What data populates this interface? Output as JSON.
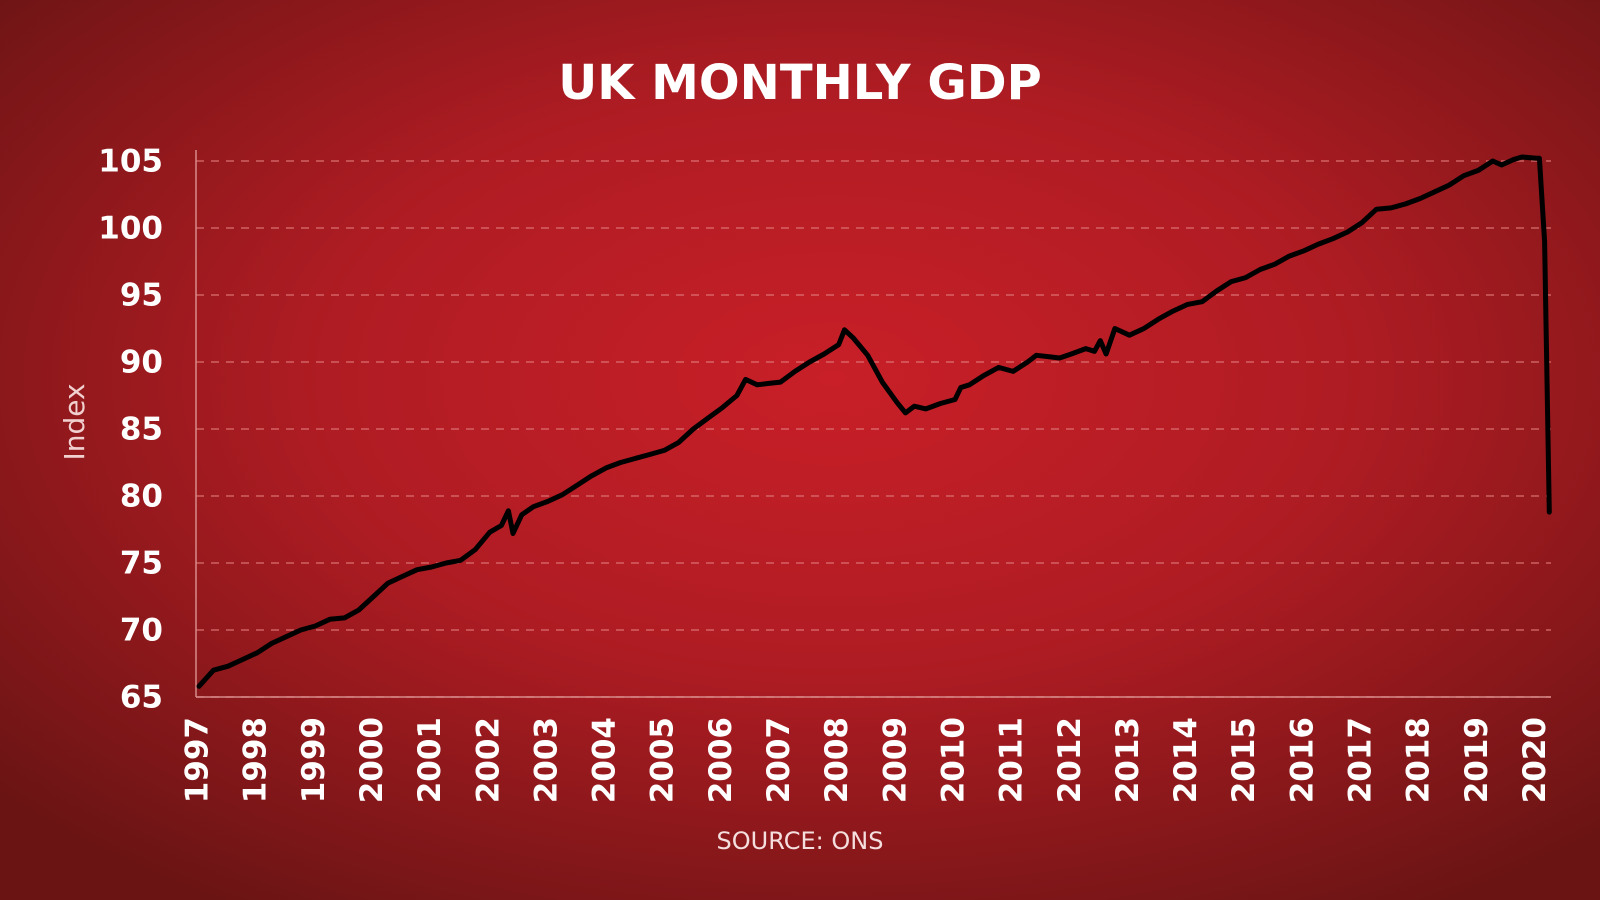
{
  "chart_data": {
    "type": "line",
    "title": "UK MONTHLY GDP",
    "ylabel": "Index",
    "source": "SOURCE: ONS",
    "x": [
      1997.0,
      1997.25,
      1997.5,
      1997.75,
      1998.0,
      1998.25,
      1998.5,
      1998.75,
      1999.0,
      1999.25,
      1999.5,
      1999.75,
      2000.0,
      2000.25,
      2000.5,
      2000.75,
      2001.0,
      2001.25,
      2001.5,
      2001.75,
      2002.0,
      2002.2,
      2002.32,
      2002.4,
      2002.55,
      2002.75,
      2003.0,
      2003.25,
      2003.5,
      2003.75,
      2004.0,
      2004.25,
      2004.5,
      2004.75,
      2005.0,
      2005.25,
      2005.5,
      2005.75,
      2006.0,
      2006.25,
      2006.4,
      2006.6,
      2006.8,
      2007.0,
      2007.25,
      2007.5,
      2007.75,
      2008.0,
      2008.1,
      2008.25,
      2008.5,
      2008.75,
      2009.0,
      2009.15,
      2009.3,
      2009.5,
      2009.75,
      2010.0,
      2010.1,
      2010.25,
      2010.5,
      2010.75,
      2011.0,
      2011.25,
      2011.4,
      2011.6,
      2011.8,
      2012.0,
      2012.25,
      2012.4,
      2012.5,
      2012.6,
      2012.75,
      2013.0,
      2013.25,
      2013.5,
      2013.75,
      2014.0,
      2014.25,
      2014.5,
      2014.75,
      2015.0,
      2015.25,
      2015.5,
      2015.75,
      2016.0,
      2016.25,
      2016.5,
      2016.75,
      2017.0,
      2017.25,
      2017.5,
      2017.75,
      2018.0,
      2018.25,
      2018.5,
      2018.75,
      2019.0,
      2019.25,
      2019.4,
      2019.6,
      2019.75,
      2020.0,
      2020.05,
      2020.14,
      2020.22
    ],
    "series": [
      {
        "name": "UK monthly GDP",
        "color": "#000000",
        "values": [
          65.8,
          67,
          67.3,
          67.8,
          68.3,
          69,
          69.5,
          70,
          70.3,
          70.8,
          70.9,
          71.5,
          72.5,
          73.5,
          74,
          74.5,
          74.7,
          75,
          75.2,
          76,
          77.3,
          77.8,
          78.9,
          77.2,
          78.6,
          79.2,
          79.6,
          80.1,
          80.8,
          81.5,
          82.1,
          82.5,
          82.8,
          83.1,
          83.4,
          84,
          85,
          85.8,
          86.6,
          87.5,
          88.7,
          88.3,
          88.4,
          88.5,
          89.3,
          90,
          90.6,
          91.3,
          92.4,
          91.8,
          90.5,
          88.5,
          87,
          86.2,
          86.7,
          86.5,
          86.9,
          87.2,
          88.1,
          88.3,
          89,
          89.6,
          89.3,
          90,
          90.5,
          90.4,
          90.3,
          90.6,
          91,
          90.8,
          91.6,
          90.6,
          92.5,
          92,
          92.5,
          93.2,
          93.8,
          94.3,
          94.5,
          95.3,
          96,
          96.3,
          96.9,
          97.3,
          97.9,
          98.3,
          98.8,
          99.2,
          99.7,
          100.4,
          101.4,
          101.5,
          101.8,
          102.2,
          102.7,
          103.2,
          103.9,
          104.3,
          105,
          104.7,
          105.1,
          105.3,
          105.2,
          105.2,
          99,
          78.8
        ]
      }
    ],
    "xlim": [
      1997,
      2020.25
    ],
    "xticks": [
      1997,
      1998,
      1999,
      2000,
      2001,
      2002,
      2003,
      2004,
      2005,
      2006,
      2007,
      2008,
      2009,
      2010,
      2011,
      2012,
      2013,
      2014,
      2015,
      2016,
      2017,
      2018,
      2019,
      2020
    ],
    "ylim": [
      65,
      105
    ],
    "yticks": [
      65,
      70,
      75,
      80,
      85,
      90,
      95,
      100,
      105
    ],
    "grid": true
  }
}
